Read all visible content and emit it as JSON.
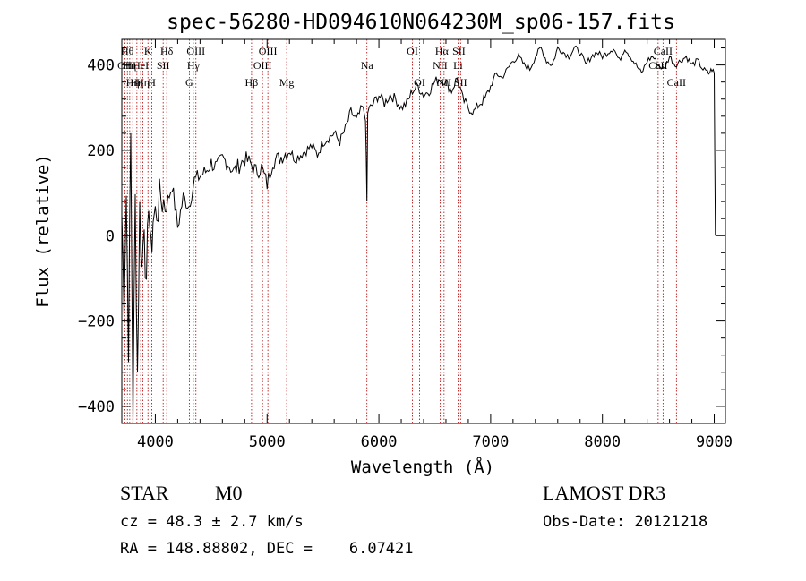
{
  "chart_data": {
    "type": "line",
    "title": "spec-56280-HD094610N064230M_sp06-157.fits",
    "xlabel": "Wavelength (Å)",
    "ylabel": "Flux (relative)",
    "xlim": [
      3700,
      9100
    ],
    "ylim": [
      -440,
      460
    ],
    "x_ticks": [
      4000,
      5000,
      6000,
      7000,
      8000,
      9000
    ],
    "x_tick_labels": [
      "4000",
      "5000",
      "6000",
      "7000",
      "8000",
      "9000"
    ],
    "y_ticks": [
      -400,
      -200,
      0,
      200,
      400
    ],
    "y_tick_labels": [
      "−400",
      "−200",
      "0",
      "200",
      "400"
    ],
    "series": [
      {
        "name": "flux",
        "x": [
          3700,
          3720,
          3740,
          3760,
          3780,
          3800,
          3820,
          3840,
          3860,
          3880,
          3900,
          3920,
          3940,
          3960,
          3980,
          4000,
          4050,
          4100,
          4150,
          4200,
          4250,
          4300,
          4350,
          4400,
          4450,
          4500,
          4550,
          4600,
          4650,
          4700,
          4750,
          4800,
          4850,
          4900,
          4950,
          5000,
          5050,
          5100,
          5150,
          5200,
          5250,
          5300,
          5350,
          5400,
          5450,
          5500,
          5550,
          5600,
          5650,
          5700,
          5750,
          5800,
          5850,
          5880,
          5893,
          5900,
          5950,
          6000,
          6050,
          6100,
          6150,
          6200,
          6250,
          6300,
          6350,
          6400,
          6450,
          6500,
          6550,
          6600,
          6650,
          6700,
          6750,
          6800,
          6850,
          6900,
          6950,
          7000,
          7050,
          7100,
          7150,
          7200,
          7250,
          7300,
          7350,
          7400,
          7450,
          7500,
          7550,
          7600,
          7650,
          7700,
          7750,
          7800,
          7850,
          7900,
          7950,
          8000,
          8050,
          8100,
          8150,
          8200,
          8250,
          8300,
          8350,
          8400,
          8450,
          8500,
          8550,
          8600,
          8650,
          8700,
          8750,
          8800,
          8850,
          8900,
          8950,
          8980,
          9000,
          9010
        ],
        "y": [
          50,
          -150,
          100,
          -250,
          230,
          -420,
          80,
          -320,
          60,
          -80,
          50,
          -150,
          100,
          -50,
          40,
          50,
          90,
          70,
          120,
          20,
          90,
          70,
          130,
          140,
          150,
          170,
          160,
          180,
          170,
          150,
          165,
          180,
          170,
          150,
          160,
          120,
          175,
          180,
          190,
          200,
          180,
          190,
          200,
          210,
          190,
          220,
          230,
          240,
          220,
          250,
          290,
          270,
          300,
          280,
          80,
          290,
          310,
          330,
          310,
          330,
          320,
          300,
          310,
          340,
          350,
          330,
          340,
          360,
          370,
          360,
          340,
          370,
          320,
          300,
          290,
          310,
          320,
          350,
          380,
          370,
          390,
          410,
          420,
          400,
          390,
          420,
          440,
          410,
          400,
          440,
          430,
          420,
          440,
          430,
          400,
          420,
          430,
          420,
          430,
          440,
          410,
          440,
          420,
          400,
          380,
          410,
          420,
          400,
          390,
          420,
          400,
          410,
          420,
          400,
          410,
          390,
          380,
          390,
          380,
          0
        ]
      }
    ],
    "lines": [
      {
        "wavelength": 3728,
        "label": "OII",
        "row": 2
      },
      {
        "wavelength": 3750,
        "label": "Hθ",
        "row": 1
      },
      {
        "wavelength": 3771,
        "label": "Hη",
        "row": 2
      },
      {
        "wavelength": 3798,
        "label": "Hη",
        "row": 3
      },
      {
        "wavelength": 3835,
        "label": "Hη",
        "row": 3
      },
      {
        "wavelength": 3869,
        "label": "HeI",
        "row": 2
      },
      {
        "wavelength": 3889,
        "label": "Hη",
        "row": 3
      },
      {
        "wavelength": 3934,
        "label": "K",
        "row": 1
      },
      {
        "wavelength": 3969,
        "label": "H",
        "row": 3
      },
      {
        "wavelength": 4070,
        "label": "SII",
        "row": 2
      },
      {
        "wavelength": 4102,
        "label": "Hδ",
        "row": 1
      },
      {
        "wavelength": 4304,
        "label": "G",
        "row": 3
      },
      {
        "wavelength": 4340,
        "label": "Hγ",
        "row": 2
      },
      {
        "wavelength": 4363,
        "label": "OIII",
        "row": 1
      },
      {
        "wavelength": 4861,
        "label": "Hβ",
        "row": 3
      },
      {
        "wavelength": 4959,
        "label": "OIII",
        "row": 2
      },
      {
        "wavelength": 5007,
        "label": "OIII",
        "row": 1
      },
      {
        "wavelength": 5175,
        "label": "Mg",
        "row": 3
      },
      {
        "wavelength": 5893,
        "label": "Na",
        "row": 2
      },
      {
        "wavelength": 6300,
        "label": "OI",
        "row": 1
      },
      {
        "wavelength": 6364,
        "label": "OI",
        "row": 3
      },
      {
        "wavelength": 6548,
        "label": "NII",
        "row": 2
      },
      {
        "wavelength": 6563,
        "label": "Hα",
        "row": 1
      },
      {
        "wavelength": 6583,
        "label": "NII",
        "row": 3
      },
      {
        "wavelength": 6708,
        "label": "Li",
        "row": 2
      },
      {
        "wavelength": 6716,
        "label": "SII",
        "row": 1
      },
      {
        "wavelength": 6731,
        "label": "SII",
        "row": 3
      },
      {
        "wavelength": 8498,
        "label": "CaII",
        "row": 2
      },
      {
        "wavelength": 8542,
        "label": "CaII",
        "row": 1
      },
      {
        "wavelength": 8662,
        "label": "CaII",
        "row": 3
      }
    ]
  },
  "info": {
    "object_class": "STAR",
    "subclass": "M0",
    "survey": "LAMOST DR3",
    "redshift": "cz = 48.3 ± 2.7 km/s",
    "obs_date": "Obs-Date: 20121218",
    "coords": "RA = 148.88802, DEC =    6.07421"
  },
  "colors": {
    "axis": "#000000",
    "line_marker": "#b00000",
    "spectrum": "#000000"
  }
}
